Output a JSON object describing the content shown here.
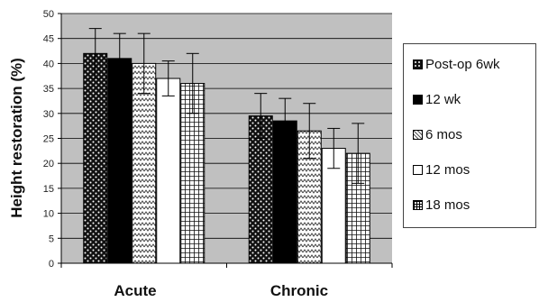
{
  "chart_data": {
    "type": "bar",
    "categories": [
      "Acute",
      "Chronic"
    ],
    "ylabel": "Height restoration (%)",
    "ylim": [
      0,
      50
    ],
    "yticks": [
      0,
      5,
      10,
      15,
      20,
      25,
      30,
      35,
      40,
      45,
      50
    ],
    "grid": true,
    "legend_position": "right",
    "series": [
      {
        "name": "Post-op 6wk",
        "values": [
          42,
          29.5
        ],
        "errors": [
          5,
          4.5
        ],
        "pattern": "dots"
      },
      {
        "name": "12 wk",
        "values": [
          41,
          28.5
        ],
        "errors": [
          5,
          4.5
        ],
        "pattern": "solid"
      },
      {
        "name": "6 mos",
        "values": [
          40,
          26.5
        ],
        "errors": [
          6,
          5.5
        ],
        "pattern": "zigzag"
      },
      {
        "name": "12 mos",
        "values": [
          37,
          23
        ],
        "errors": [
          3.5,
          4
        ],
        "pattern": "white"
      },
      {
        "name": "18 mos",
        "values": [
          36,
          22
        ],
        "errors": [
          6,
          6
        ],
        "pattern": "grid"
      }
    ]
  }
}
